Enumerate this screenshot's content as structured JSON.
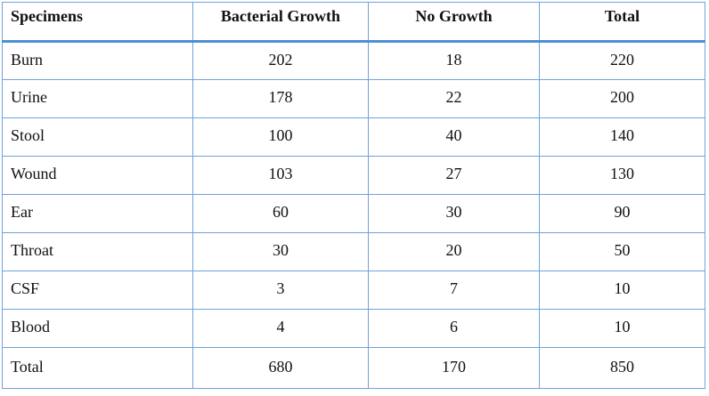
{
  "table": {
    "headers": [
      "Specimens",
      "Bacterial Growth",
      "No Growth",
      "Total"
    ],
    "rows": [
      [
        "Burn",
        "202",
        "18",
        "220"
      ],
      [
        "Urine",
        "178",
        "22",
        "200"
      ],
      [
        "Stool",
        "100",
        "40",
        "140"
      ],
      [
        "Wound",
        "103",
        "27",
        "130"
      ],
      [
        "Ear",
        "60",
        "30",
        "90"
      ],
      [
        "Throat",
        "30",
        "20",
        "50"
      ],
      [
        "CSF",
        "3",
        "7",
        "10"
      ],
      [
        "Blood",
        "4",
        "6",
        "10"
      ],
      [
        "Total",
        "680",
        "170",
        "850"
      ]
    ]
  },
  "colors": {
    "border": "#6fa3d8",
    "header_rule": "#4e8fd6"
  }
}
